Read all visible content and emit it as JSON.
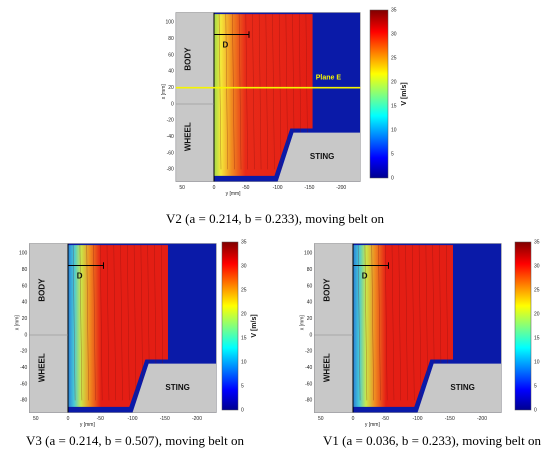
{
  "panels": [
    {
      "caption": "V2 (a = 0.214, b = 0.233), moving belt on",
      "x_label": "y [mm]",
      "y_label": "x [mm]",
      "colorbar_label": "V [m/s]",
      "body": "BODY",
      "wheel": "WHEEL",
      "sting": "STING",
      "d": "D",
      "plane": "Plane E",
      "xticks": [
        50,
        0,
        -50,
        -100,
        -150,
        -200
      ],
      "yticks": [
        100,
        80,
        60,
        40,
        20,
        0,
        -20,
        -40,
        -60,
        -80
      ],
      "cticks": [
        35,
        30,
        25,
        20,
        15,
        10,
        5,
        0
      ]
    },
    {
      "caption": "V3 (a = 0.214, b = 0.507), moving belt on",
      "x_label": "y [mm]",
      "y_label": "x [mm]",
      "colorbar_label": "V [m/s]",
      "body": "BODY",
      "wheel": "WHEEL",
      "sting": "STING",
      "d": "D",
      "xticks": [
        50,
        0,
        -50,
        -100,
        -150,
        -200
      ],
      "yticks": [
        100,
        80,
        60,
        40,
        20,
        0,
        -20,
        -40,
        -60,
        -80
      ],
      "cticks": [
        35,
        30,
        25,
        20,
        15,
        10,
        5,
        0
      ]
    },
    {
      "caption": "V1 (a = 0.036, b = 0.233), moving belt on",
      "x_label": "y [mm]",
      "y_label": "x [mm]",
      "body": "BODY",
      "wheel": "WHEEL",
      "sting": "STING",
      "d": "D",
      "xticks": [
        50,
        0,
        -50,
        -100,
        -150,
        -200
      ],
      "yticks": [
        100,
        80,
        60,
        40,
        20,
        0,
        -20,
        -40,
        -60,
        -80
      ],
      "cticks": [
        35,
        30,
        25,
        20,
        15,
        10,
        5,
        0
      ]
    }
  ]
}
